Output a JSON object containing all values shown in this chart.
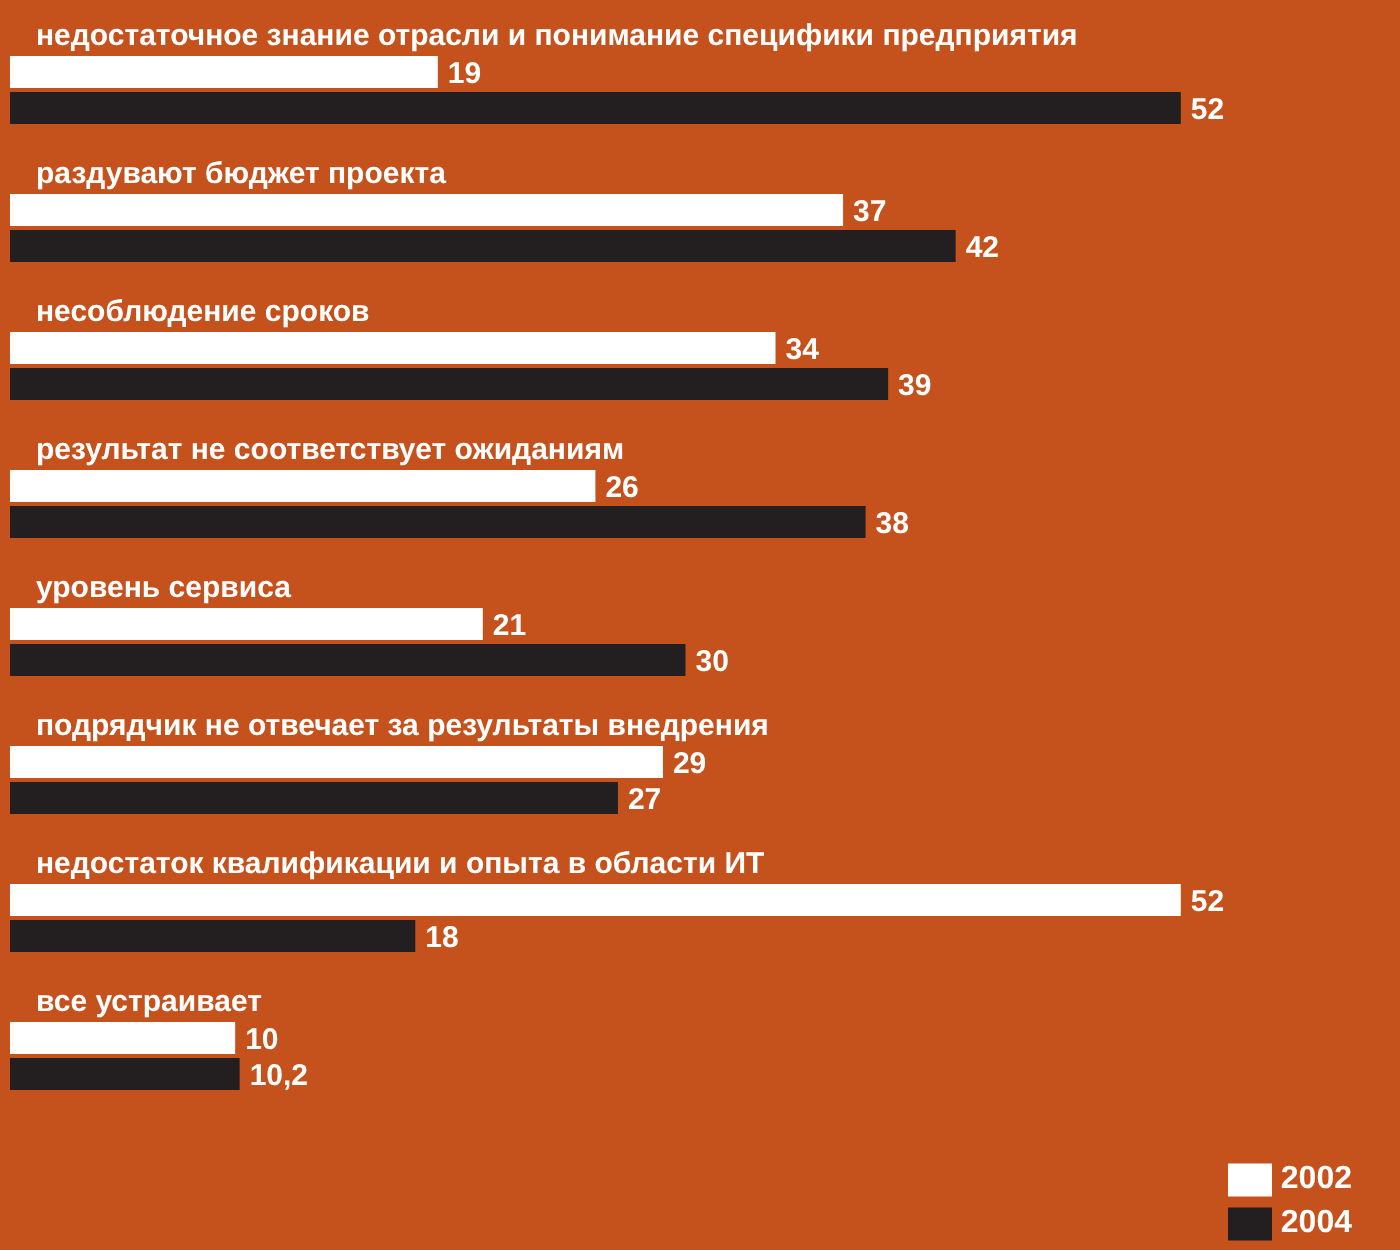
{
  "chart_data": {
    "type": "bar",
    "orientation": "horizontal",
    "legend": "bottom right",
    "categories": [
      "недостаточное знание отрасли и понимание специфики предприятия",
      "раздувают бюджет проекта",
      "несоблюдение сроков",
      "результат не соответствует ожиданиям",
      "уровень сервиса",
      "подрядчик не отвечает за результаты внедрения",
      "недостаток квалификации и опыта в области ИТ",
      "все устраивает"
    ],
    "series": [
      {
        "name": "2002",
        "color": "#ffffff",
        "values": [
          19,
          37,
          34,
          26,
          21,
          29,
          52,
          10
        ],
        "value_labels": [
          "19",
          "37",
          "34",
          "26",
          "21",
          "29",
          "52",
          "10"
        ]
      },
      {
        "name": "2004",
        "color": "#231f20",
        "values": [
          52,
          42,
          39,
          38,
          30,
          27,
          18,
          10.2
        ],
        "value_labels": [
          "52",
          "42",
          "39",
          "38",
          "30",
          "27",
          "18",
          "10,2"
        ]
      }
    ]
  }
}
